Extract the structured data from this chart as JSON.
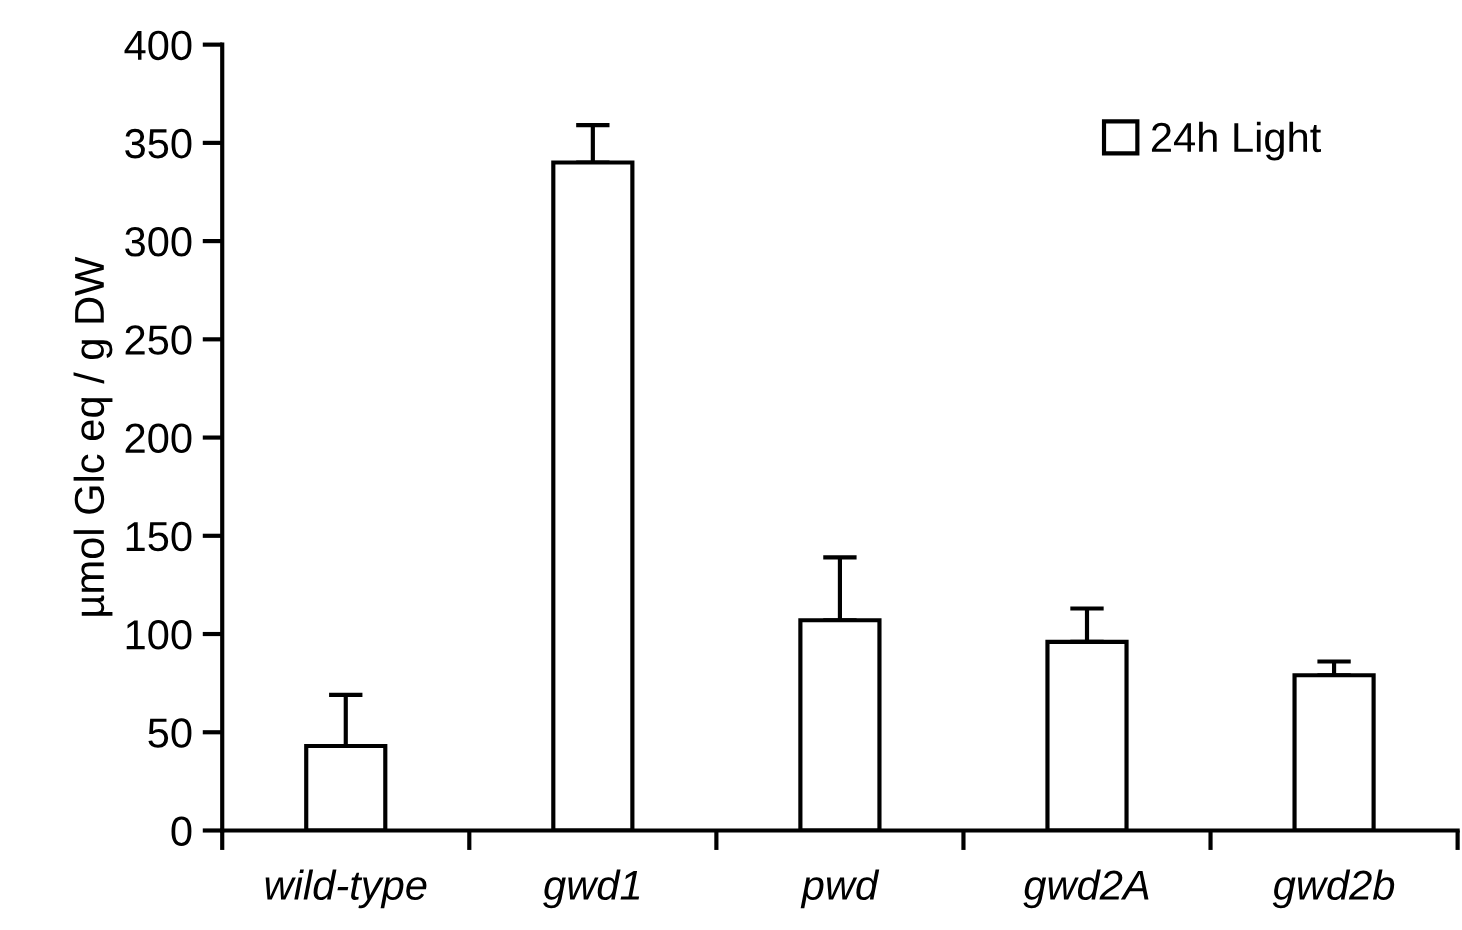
{
  "chart_data": {
    "type": "bar",
    "ylabel": "µmol Glc eq / g DW",
    "categories": [
      "wild-type",
      "gwd1",
      "pwd",
      "gwd2A",
      "gwd2b"
    ],
    "series": [
      {
        "name": "24h Light",
        "color": "#ffffff",
        "values": [
          43,
          340,
          107,
          96,
          79
        ],
        "errors": [
          [
            43,
            69
          ],
          [
            340,
            359
          ],
          [
            107,
            139
          ],
          [
            96,
            113
          ],
          [
            79,
            86
          ]
        ]
      }
    ],
    "ylim": [
      0,
      400
    ],
    "yticks": [
      0,
      50,
      100,
      150,
      200,
      250,
      300,
      350,
      400
    ],
    "grid": false,
    "legend": "top right"
  }
}
